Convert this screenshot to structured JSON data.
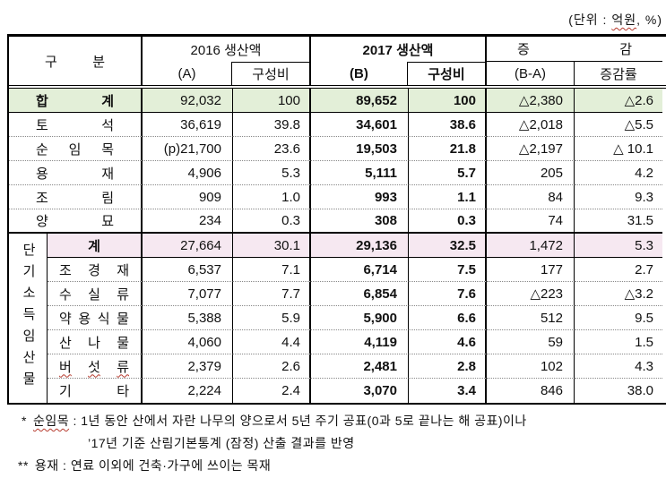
{
  "unit_note": {
    "prefix": "(단위 : ",
    "term": "억원",
    "suffix": ", %)"
  },
  "header": {
    "category": "구분",
    "group_2016": "2016 생산액",
    "group_2017": "2017 생산액",
    "group_change": "증감",
    "sub_a": "(A)",
    "sub_share_2016": "구성비",
    "sub_b": "(B)",
    "sub_share_2017": "구성비",
    "sub_diff": "(B-A)",
    "sub_rate": "증감률"
  },
  "group_label": "단기소득임산물",
  "table": {
    "rows": [
      {
        "label": "합계",
        "a": "92,032",
        "share_a": "100",
        "b": "89,652",
        "share_b": "100",
        "diff": "△2,380",
        "rate": "△2.6"
      },
      {
        "label": "토석",
        "a": "36,619",
        "share_a": "39.8",
        "b": "34,601",
        "share_b": "38.6",
        "diff": "△2,018",
        "rate": "△5.5"
      },
      {
        "label": "순임목",
        "a": "(p)21,700",
        "share_a": "23.6",
        "b": "19,503",
        "share_b": "21.8",
        "diff": "△2,197",
        "rate": "△ 10.1"
      },
      {
        "label": "용재",
        "a": "4,906",
        "share_a": "5.3",
        "b": "5,111",
        "share_b": "5.7",
        "diff": "205",
        "rate": "4.2"
      },
      {
        "label": "조림",
        "a": "909",
        "share_a": "1.0",
        "b": "993",
        "share_b": "1.1",
        "diff": "84",
        "rate": "9.3"
      },
      {
        "label": "양묘",
        "a": "234",
        "share_a": "0.3",
        "b": "308",
        "share_b": "0.3",
        "diff": "74",
        "rate": "31.5"
      },
      {
        "label": "계",
        "a": "27,664",
        "share_a": "30.1",
        "b": "29,136",
        "share_b": "32.5",
        "diff": "1,472",
        "rate": "5.3"
      },
      {
        "label": "조경재",
        "a": "6,537",
        "share_a": "7.1",
        "b": "6,714",
        "share_b": "7.5",
        "diff": "177",
        "rate": "2.7"
      },
      {
        "label": "수실류",
        "a": "7,077",
        "share_a": "7.7",
        "b": "6,854",
        "share_b": "7.6",
        "diff": "△223",
        "rate": "△3.2"
      },
      {
        "label": "약용식물",
        "a": "5,388",
        "share_a": "5.9",
        "b": "5,900",
        "share_b": "6.6",
        "diff": "512",
        "rate": "9.5"
      },
      {
        "label": "산나물",
        "a": "4,060",
        "share_a": "4.4",
        "b": "4,119",
        "share_b": "4.6",
        "diff": "59",
        "rate": "1.5"
      },
      {
        "label": "버섯류",
        "a": "2,379",
        "share_a": "2.6",
        "b": "2,481",
        "share_b": "2.8",
        "diff": "102",
        "rate": "4.3"
      },
      {
        "label": "기타",
        "a": "2,224",
        "share_a": "2.4",
        "b": "3,070",
        "share_b": "3.4",
        "diff": "846",
        "rate": "38.0"
      }
    ]
  },
  "footnotes": {
    "note1_marker": "*",
    "note1_term": "순임목",
    "note1_text": " : 1년 동안 산에서 자란 나무의 양으로서 5년 주기 공표(0과 5로 끝나는 해 공표)이나",
    "note1_cont": "’17년 기준 산림기본통계 (잠정) 산출 결과를 반영",
    "note2_marker": "**",
    "note2_text": "용재 : 연료 이외에 건축·가구에 쓰이는 목재"
  },
  "colors": {
    "total_row_bg": "#e3efd8",
    "subtotal_row_bg": "#f6e8f1"
  }
}
